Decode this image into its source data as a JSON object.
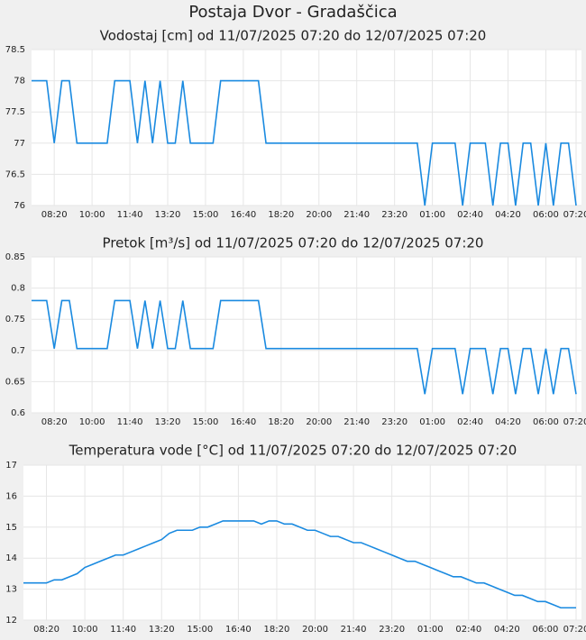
{
  "title": "Postaja Dvor - Gradaščica",
  "chart_data": [
    {
      "type": "line",
      "title": "Vodostaj [cm] od 11/07/2025 07:20 do 12/07/2025 07:20",
      "color": "#1a8ae0",
      "grid": true,
      "categories": [
        null,
        null,
        null,
        "08:20",
        null,
        null,
        null,
        null,
        "10:00",
        null,
        null,
        null,
        null,
        "11:40",
        null,
        null,
        null,
        null,
        "13:20",
        null,
        null,
        null,
        null,
        "15:00",
        null,
        null,
        null,
        null,
        "16:40",
        null,
        null,
        null,
        null,
        "18:20",
        null,
        null,
        null,
        null,
        "20:00",
        null,
        null,
        null,
        null,
        "21:40",
        null,
        null,
        null,
        null,
        "23:20",
        null,
        null,
        null,
        null,
        "01:00",
        null,
        null,
        null,
        null,
        "02:40",
        null,
        null,
        null,
        null,
        "04:20",
        null,
        null,
        null,
        null,
        "06:00",
        null,
        null,
        null,
        "07:20"
      ],
      "values": [
        78,
        78,
        78,
        77,
        78,
        78,
        77,
        77,
        77,
        77,
        77,
        78,
        78,
        78,
        77,
        78,
        77,
        78,
        77,
        77,
        78,
        77,
        77,
        77,
        77,
        78,
        78,
        78,
        78,
        78,
        78,
        77,
        77,
        77,
        77,
        77,
        77,
        77,
        77,
        77,
        77,
        77,
        77,
        77,
        77,
        77,
        77,
        77,
        77,
        77,
        77,
        77,
        76,
        77,
        77,
        77,
        77,
        76,
        77,
        77,
        77,
        76,
        77,
        77,
        76,
        77,
        77,
        76,
        77,
        76,
        77,
        77,
        76
      ],
      "ylim": [
        76,
        78.5
      ],
      "yticks": [
        76,
        76.5,
        77,
        77.5,
        78,
        78.5
      ]
    },
    {
      "type": "line",
      "title": "Pretok [m³/s] od 11/07/2025 07:20 do 12/07/2025 07:20",
      "color": "#1a8ae0",
      "grid": true,
      "categories": [
        null,
        null,
        null,
        "08:20",
        null,
        null,
        null,
        null,
        "10:00",
        null,
        null,
        null,
        null,
        "11:40",
        null,
        null,
        null,
        null,
        "13:20",
        null,
        null,
        null,
        null,
        "15:00",
        null,
        null,
        null,
        null,
        "16:40",
        null,
        null,
        null,
        null,
        "18:20",
        null,
        null,
        null,
        null,
        "20:00",
        null,
        null,
        null,
        null,
        "21:40",
        null,
        null,
        null,
        null,
        "23:20",
        null,
        null,
        null,
        null,
        "01:00",
        null,
        null,
        null,
        null,
        "02:40",
        null,
        null,
        null,
        null,
        "04:20",
        null,
        null,
        null,
        null,
        "06:00",
        null,
        null,
        null,
        "07:20"
      ],
      "values": [
        0.78,
        0.78,
        0.78,
        0.703,
        0.78,
        0.78,
        0.703,
        0.703,
        0.703,
        0.703,
        0.703,
        0.78,
        0.78,
        0.78,
        0.703,
        0.78,
        0.703,
        0.78,
        0.703,
        0.703,
        0.78,
        0.703,
        0.703,
        0.703,
        0.703,
        0.78,
        0.78,
        0.78,
        0.78,
        0.78,
        0.78,
        0.703,
        0.703,
        0.703,
        0.703,
        0.703,
        0.703,
        0.703,
        0.703,
        0.703,
        0.703,
        0.703,
        0.703,
        0.703,
        0.703,
        0.703,
        0.703,
        0.703,
        0.703,
        0.703,
        0.703,
        0.703,
        0.63,
        0.703,
        0.703,
        0.703,
        0.703,
        0.63,
        0.703,
        0.703,
        0.703,
        0.63,
        0.703,
        0.703,
        0.63,
        0.703,
        0.703,
        0.63,
        0.703,
        0.63,
        0.703,
        0.703,
        0.63
      ],
      "ylim": [
        0.6,
        0.85
      ],
      "yticks": [
        0.6,
        0.65,
        0.7,
        0.75,
        0.8,
        0.85
      ]
    },
    {
      "type": "line",
      "title": "Temperatura vode [°C] od 11/07/2025 07:20 do 12/07/2025 07:20",
      "color": "#1a8ae0",
      "grid": true,
      "categories": [
        null,
        null,
        null,
        "08:20",
        null,
        null,
        null,
        null,
        "10:00",
        null,
        null,
        null,
        null,
        "11:40",
        null,
        null,
        null,
        null,
        "13:20",
        null,
        null,
        null,
        null,
        "15:00",
        null,
        null,
        null,
        null,
        "16:40",
        null,
        null,
        null,
        null,
        "18:20",
        null,
        null,
        null,
        null,
        "20:00",
        null,
        null,
        null,
        null,
        "21:40",
        null,
        null,
        null,
        null,
        "23:20",
        null,
        null,
        null,
        null,
        "01:00",
        null,
        null,
        null,
        null,
        "02:40",
        null,
        null,
        null,
        null,
        "04:20",
        null,
        null,
        null,
        null,
        "06:00",
        null,
        null,
        null,
        "07:20"
      ],
      "values": [
        13.2,
        13.2,
        13.2,
        13.2,
        13.3,
        13.3,
        13.4,
        13.5,
        13.7,
        13.8,
        13.9,
        14.0,
        14.1,
        14.1,
        14.2,
        14.3,
        14.4,
        14.5,
        14.6,
        14.8,
        14.9,
        14.9,
        14.9,
        15.0,
        15.0,
        15.1,
        15.2,
        15.2,
        15.2,
        15.2,
        15.2,
        15.1,
        15.2,
        15.2,
        15.1,
        15.1,
        15.0,
        14.9,
        14.9,
        14.8,
        14.7,
        14.7,
        14.6,
        14.5,
        14.5,
        14.4,
        14.3,
        14.2,
        14.1,
        14.0,
        13.9,
        13.9,
        13.8,
        13.7,
        13.6,
        13.5,
        13.4,
        13.4,
        13.3,
        13.2,
        13.2,
        13.1,
        13.0,
        12.9,
        12.8,
        12.8,
        12.7,
        12.6,
        12.6,
        12.5,
        12.4,
        12.4,
        12.4
      ],
      "ylim": [
        12,
        17
      ],
      "yticks": [
        12,
        13,
        14,
        15,
        16,
        17
      ]
    }
  ]
}
